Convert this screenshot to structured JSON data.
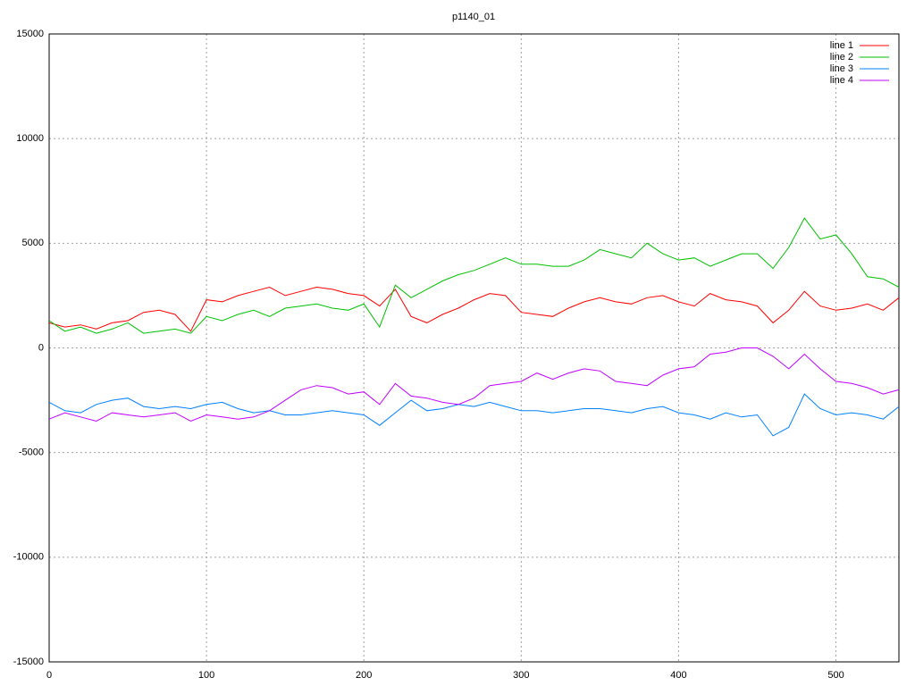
{
  "chart_data": {
    "type": "line",
    "title": "p1140_01",
    "x": [
      0,
      10,
      20,
      30,
      40,
      50,
      60,
      70,
      80,
      90,
      100,
      110,
      120,
      130,
      140,
      150,
      160,
      170,
      180,
      190,
      200,
      210,
      220,
      230,
      240,
      250,
      260,
      270,
      280,
      290,
      300,
      310,
      320,
      330,
      340,
      350,
      360,
      370,
      380,
      390,
      400,
      410,
      420,
      430,
      440,
      450,
      460,
      470,
      480,
      490,
      500,
      510,
      520,
      530,
      540
    ],
    "series": [
      {
        "name": "line 1",
        "color": "#ff0000",
        "values": [
          1200,
          1000,
          1100,
          900,
          1200,
          1300,
          1700,
          1800,
          1600,
          800,
          2300,
          2200,
          2500,
          2700,
          2900,
          2500,
          2700,
          2900,
          2800,
          2600,
          2500,
          2000,
          2800,
          1500,
          1200,
          1600,
          1900,
          2300,
          2600,
          2500,
          1700,
          1600,
          1500,
          1900,
          2200,
          2400,
          2200,
          2100,
          2400,
          2500,
          2200,
          2000,
          2600,
          2300,
          2200,
          2000,
          1200,
          1800,
          2700,
          2000,
          1800,
          1900,
          2100,
          1800,
          2400
        ]
      },
      {
        "name": "line 2",
        "color": "#00c000",
        "values": [
          1300,
          800,
          1000,
          700,
          900,
          1200,
          700,
          800,
          900,
          700,
          1500,
          1300,
          1600,
          1800,
          1500,
          1900,
          2000,
          2100,
          1900,
          1800,
          2100,
          1000,
          3000,
          2400,
          2800,
          3200,
          3500,
          3700,
          4000,
          4300,
          4000,
          4000,
          3900,
          3900,
          4200,
          4700,
          4500,
          4300,
          5000,
          4500,
          4200,
          4300,
          3900,
          4200,
          4500,
          4500,
          3800,
          4800,
          6200,
          5200,
          5400,
          4500,
          3400,
          3300,
          2900
        ]
      },
      {
        "name": "line 3",
        "color": "#0080ff",
        "values": [
          -2600,
          -3000,
          -3100,
          -2700,
          -2500,
          -2400,
          -2800,
          -2900,
          -2800,
          -2900,
          -2700,
          -2600,
          -2900,
          -3100,
          -3000,
          -3200,
          -3200,
          -3100,
          -3000,
          -3100,
          -3200,
          -3700,
          -3100,
          -2500,
          -3000,
          -2900,
          -2700,
          -2800,
          -2600,
          -2800,
          -3000,
          -3000,
          -3100,
          -3000,
          -2900,
          -2900,
          -3000,
          -3100,
          -2900,
          -2800,
          -3100,
          -3200,
          -3400,
          -3100,
          -3300,
          -3200,
          -4200,
          -3800,
          -2200,
          -2900,
          -3200,
          -3100,
          -3200,
          -3400,
          -2800
        ]
      },
      {
        "name": "line 4",
        "color": "#c000ff",
        "values": [
          -3400,
          -3100,
          -3300,
          -3500,
          -3100,
          -3200,
          -3300,
          -3200,
          -3100,
          -3500,
          -3200,
          -3300,
          -3400,
          -3300,
          -3000,
          -2500,
          -2000,
          -1800,
          -1900,
          -2200,
          -2100,
          -2700,
          -1700,
          -2300,
          -2400,
          -2600,
          -2700,
          -2400,
          -1800,
          -1700,
          -1600,
          -1200,
          -1500,
          -1200,
          -1000,
          -1100,
          -1600,
          -1700,
          -1800,
          -1300,
          -1000,
          -900,
          -300,
          -200,
          0,
          0,
          -400,
          -1000,
          -300,
          -1000,
          -1600,
          -1700,
          -1900,
          -2200,
          -2000
        ]
      }
    ],
    "xlim": [
      0,
      540
    ],
    "xticks": [
      0,
      100,
      200,
      300,
      400,
      500
    ],
    "ylim": [
      -15000,
      15000
    ],
    "yticks": [
      -15000,
      -10000,
      -5000,
      0,
      5000,
      10000,
      15000
    ],
    "grid": true,
    "legend": "top-right"
  }
}
